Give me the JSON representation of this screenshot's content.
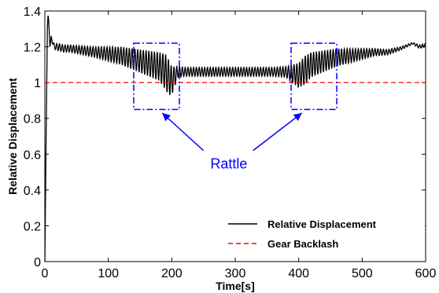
{
  "chart_data": {
    "type": "line",
    "title": "",
    "xlabel": "Time[s]",
    "ylabel": "Relative Displacement",
    "xlim": [
      0,
      600
    ],
    "ylim": [
      0,
      1.4
    ],
    "xticks": [
      0,
      100,
      200,
      300,
      400,
      500,
      600
    ],
    "yticks": [
      0,
      0.2,
      0.4,
      0.6,
      0.8,
      1,
      1.2,
      1.4
    ],
    "xtick_labels": [
      "0",
      "100",
      "200",
      "300",
      "400",
      "500",
      "600"
    ],
    "ytick_labels": [
      "0",
      "0.2",
      "0.4",
      "0.6",
      "0.8",
      "1",
      "1.2",
      "1.4"
    ],
    "grid": false,
    "legend_position": "bottom-right",
    "series": [
      {
        "name": "Relative Displacement",
        "color": "#000000",
        "style": "solid",
        "x": [
          0,
          2,
          4,
          5,
          6,
          8,
          10,
          15,
          20,
          30,
          40,
          60,
          80,
          100,
          120,
          140,
          160,
          180,
          190,
          195,
          200,
          210,
          220,
          240,
          260,
          280,
          300,
          320,
          340,
          360,
          380,
          400,
          410,
          420,
          440,
          460,
          480,
          500,
          520,
          540,
          560,
          580,
          590,
          600
        ],
        "y": [
          0,
          0.7,
          1.3,
          1.38,
          1.35,
          1.2,
          1.25,
          1.2,
          1.2,
          1.19,
          1.19,
          1.18,
          1.17,
          1.16,
          1.15,
          1.13,
          1.11,
          1.09,
          1.06,
          1.03,
          1.01,
          1.06,
          1.06,
          1.06,
          1.06,
          1.06,
          1.06,
          1.06,
          1.06,
          1.06,
          1.06,
          1.04,
          1.07,
          1.1,
          1.12,
          1.14,
          1.15,
          1.16,
          1.17,
          1.17,
          1.19,
          1.22,
          1.2,
          1.21
        ],
        "oscillation_amplitude": [
          0,
          0,
          0,
          0,
          0,
          0,
          0.01,
          0.015,
          0.02,
          0.02,
          0.02,
          0.025,
          0.03,
          0.04,
          0.05,
          0.06,
          0.07,
          0.08,
          0.1,
          0.1,
          0.08,
          0.03,
          0.025,
          0.025,
          0.025,
          0.025,
          0.025,
          0.025,
          0.025,
          0.025,
          0.03,
          0.07,
          0.08,
          0.07,
          0.06,
          0.05,
          0.04,
          0.03,
          0.02,
          0.015,
          0.01,
          0.005,
          0.01,
          0.01
        ]
      },
      {
        "name": "Gear Backlash",
        "color": "#ff0000",
        "style": "dashed",
        "x": [
          0,
          600
        ],
        "y": [
          1,
          1
        ]
      }
    ],
    "annotations": [
      {
        "text": "Rattle",
        "color": "#0000ff",
        "text_x": 290,
        "text_y": 0.52,
        "boxes": [
          {
            "x0": 140,
            "x1": 212,
            "y0": 0.85,
            "y1": 1.22
          },
          {
            "x0": 388,
            "x1": 460,
            "y0": 0.85,
            "y1": 1.22
          }
        ],
        "arrows": [
          {
            "from_x": 250,
            "from_y": 0.62,
            "to_x": 185,
            "to_y": 0.83
          },
          {
            "from_x": 328,
            "from_y": 0.62,
            "to_x": 405,
            "to_y": 0.83
          }
        ]
      }
    ]
  }
}
